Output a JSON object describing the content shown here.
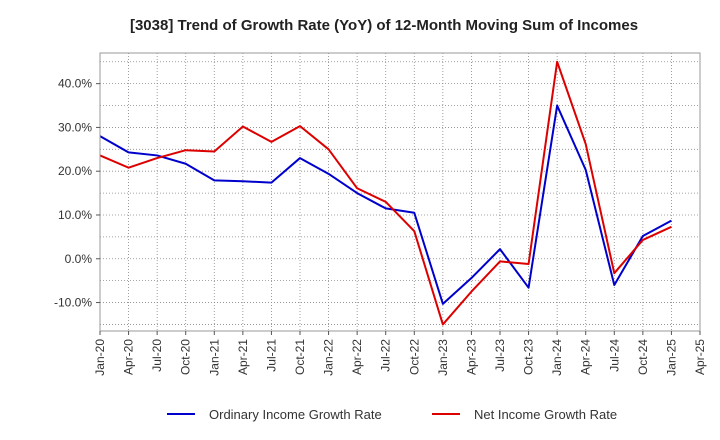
{
  "chart_data": {
    "type": "line",
    "title": "[3038]  Trend of Growth Rate (YoY) of 12-Month Moving Sum of Incomes",
    "xlabel": "",
    "ylabel": "",
    "ylim": [
      -16.5,
      47.0
    ],
    "y_ticks": [
      -10,
      0,
      10,
      20,
      30,
      40
    ],
    "y_tick_labels": [
      "-10.0%",
      "0.0%",
      "10.0%",
      "20.0%",
      "30.0%",
      "40.0%"
    ],
    "x": [
      "Jan-20",
      "Apr-20",
      "Jul-20",
      "Oct-20",
      "Jan-21",
      "Apr-21",
      "Jul-21",
      "Oct-21",
      "Jan-22",
      "Apr-22",
      "Jul-22",
      "Oct-22",
      "Jan-23",
      "Apr-23",
      "Jul-23",
      "Oct-23",
      "Jan-24",
      "Apr-24",
      "Jul-24",
      "Oct-24",
      "Jan-25"
    ],
    "x_tick_labels": [
      "Jan-20",
      "Apr-20",
      "Jul-20",
      "Oct-20",
      "Jan-21",
      "Apr-21",
      "Jul-21",
      "Oct-21",
      "Jan-22",
      "Apr-22",
      "Jul-22",
      "Oct-22",
      "Jan-23",
      "Apr-23",
      "Jul-23",
      "Oct-23",
      "Jan-24",
      "Apr-24",
      "Jul-24",
      "Oct-24",
      "Jan-25",
      "Apr-25"
    ],
    "grid": true,
    "legend_position": "bottom",
    "series": [
      {
        "name": "Ordinary Income Growth Rate",
        "color": "#0000cc",
        "values": [
          28.0,
          24.3,
          23.6,
          21.7,
          17.9,
          17.7,
          17.4,
          23.0,
          19.4,
          15.0,
          11.5,
          10.5,
          -10.3,
          -4.4,
          2.2,
          -6.6,
          35.0,
          20.3,
          -6.0,
          5.2,
          8.7
        ]
      },
      {
        "name": "Net Income Growth Rate",
        "color": "#dd0000",
        "values": [
          23.6,
          20.8,
          23.0,
          24.8,
          24.5,
          30.2,
          26.7,
          30.3,
          25.0,
          16.1,
          13.0,
          6.3,
          -15.0,
          -7.5,
          -0.6,
          -1.2,
          45.0,
          26.2,
          -3.3,
          4.3,
          7.3
        ]
      }
    ]
  }
}
